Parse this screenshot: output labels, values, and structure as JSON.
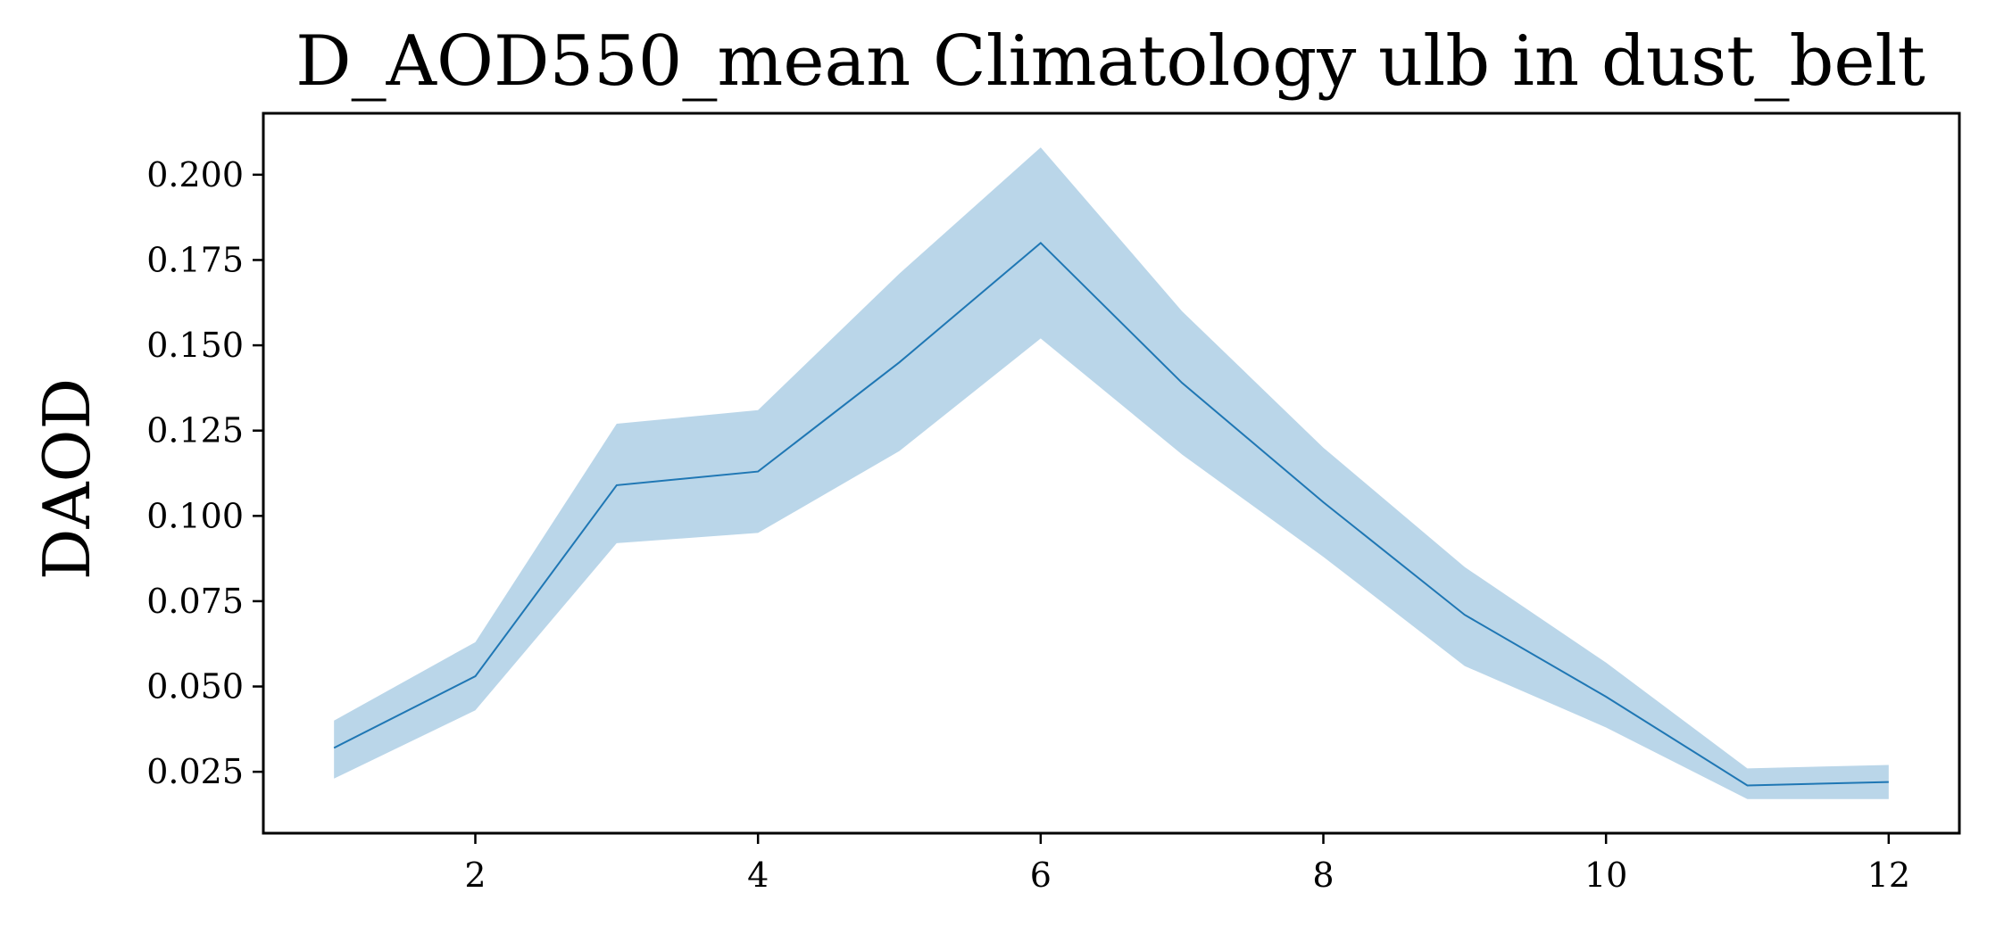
{
  "chart_data": {
    "type": "line",
    "title": "D_AOD550_mean Climatology ulb in dust_belt",
    "xlabel": "",
    "ylabel": "DAOD",
    "xlim": [
      0.5,
      12.5
    ],
    "ylim": [
      0.007,
      0.218
    ],
    "x": [
      1,
      2,
      3,
      4,
      5,
      6,
      7,
      8,
      9,
      10,
      11,
      12
    ],
    "xticks": [
      2,
      4,
      6,
      8,
      10,
      12
    ],
    "yticks": [
      0.025,
      0.05,
      0.075,
      0.1,
      0.125,
      0.15,
      0.175,
      0.2
    ],
    "ytick_labels": [
      "0.025",
      "0.050",
      "0.075",
      "0.100",
      "0.125",
      "0.150",
      "0.175",
      "0.200"
    ],
    "grid": false,
    "series": [
      {
        "values": [
          0.032,
          0.053,
          0.109,
          0.113,
          0.145,
          0.18,
          0.139,
          0.104,
          0.071,
          0.047,
          0.021,
          0.022
        ],
        "lower": [
          0.023,
          0.043,
          0.092,
          0.095,
          0.119,
          0.152,
          0.118,
          0.088,
          0.056,
          0.038,
          0.017,
          0.017
        ],
        "upper": [
          0.04,
          0.063,
          0.127,
          0.131,
          0.171,
          0.208,
          0.16,
          0.12,
          0.085,
          0.057,
          0.026,
          0.027
        ],
        "color": "#1f77b4",
        "band_color": "#bad6e9"
      }
    ]
  }
}
